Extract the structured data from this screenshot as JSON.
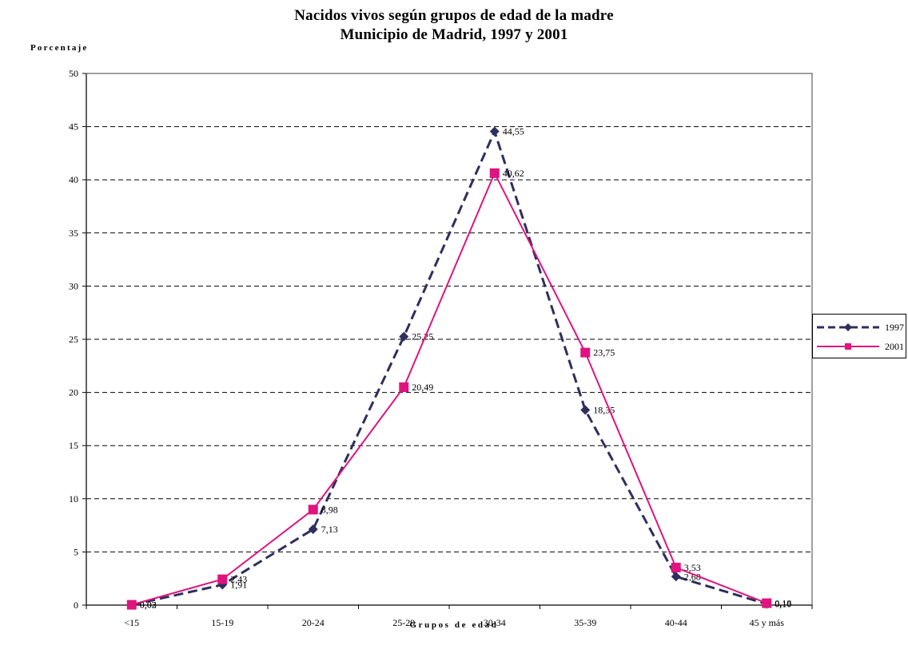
{
  "chart_data": {
    "type": "line",
    "title": "Nacidos vivos según grupos de edad de la madre",
    "subtitle": "Municipio de Madrid, 1997 y 2001",
    "xlabel": "Grupos de edad",
    "ylabel": "Porcentaje",
    "categories": [
      "<15",
      "15-19",
      "20-24",
      "25-29",
      "30-34",
      "35-39",
      "40-44",
      "45 y más"
    ],
    "ylim": [
      0,
      50
    ],
    "yticks": [
      "0",
      "5",
      "10",
      "15",
      "20",
      "25",
      "30",
      "35",
      "40",
      "45",
      "50"
    ],
    "grid": true,
    "legend_position": "right",
    "series": [
      {
        "name": "1997",
        "color": "#2e2f5e",
        "marker": "diamond",
        "line_style": "dashed",
        "values": [
          0.02,
          1.91,
          7.13,
          25.25,
          44.55,
          18.35,
          2.68,
          0.1
        ],
        "labels": [
          "0,02",
          "1,91",
          "7,13",
          "25,25",
          "44,55",
          "18,35",
          "2,68",
          "0,10"
        ]
      },
      {
        "name": "2001",
        "color": "#e0137f",
        "marker": "square",
        "line_style": "solid",
        "values": [
          0.03,
          2.43,
          8.98,
          20.49,
          40.62,
          23.75,
          3.53,
          0.18
        ],
        "labels": [
          "0,03",
          "2,43",
          "8,98",
          "20,49",
          "40,62",
          "23,75",
          "3,53",
          "0,18"
        ]
      }
    ]
  }
}
